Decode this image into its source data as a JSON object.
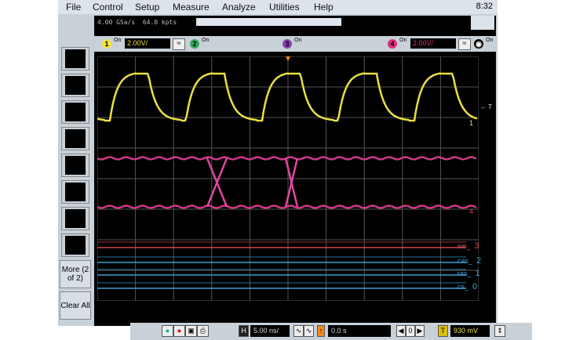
{
  "menu": [
    "File",
    "Control",
    "Setup",
    "Measure",
    "Analyze",
    "Utilities",
    "Help"
  ],
  "clock": "8:32",
  "acq": {
    "rate": "4.00 GSa/s",
    "points": "64.0 kpts"
  },
  "channels": [
    {
      "num": "1",
      "on": "On",
      "scale": "2.00V/",
      "color": "#f0e442"
    },
    {
      "num": "2",
      "on": "On",
      "color": "#3aa85a"
    },
    {
      "num": "3",
      "on": "On",
      "color": "#8a3fb0"
    },
    {
      "num": "4",
      "on": "On",
      "scale": "2.00V/",
      "color": "#e0307a"
    }
  ],
  "math_on": "On",
  "sidebar": {
    "more": "More (2 of 2)",
    "clear": "Clear All"
  },
  "markers": {
    "trig": "T",
    "ch1": "1",
    "ch4": "4"
  },
  "digital": [
    {
      "name": "we_",
      "num": "3",
      "color": "#d04a50"
    },
    {
      "name": "cas_",
      "num": "2",
      "color": "#3aa0d0"
    },
    {
      "name": "ras_",
      "num": "1",
      "color": "#3aa0d0"
    },
    {
      "name": "cs_",
      "num": "0",
      "color": "#3aa0d0"
    }
  ],
  "bottom": {
    "h": "H",
    "timebase": "5.00 ns/",
    "delay": "0.0 s",
    "zero": "0",
    "t": "T",
    "trig_level": "930 mV"
  }
}
